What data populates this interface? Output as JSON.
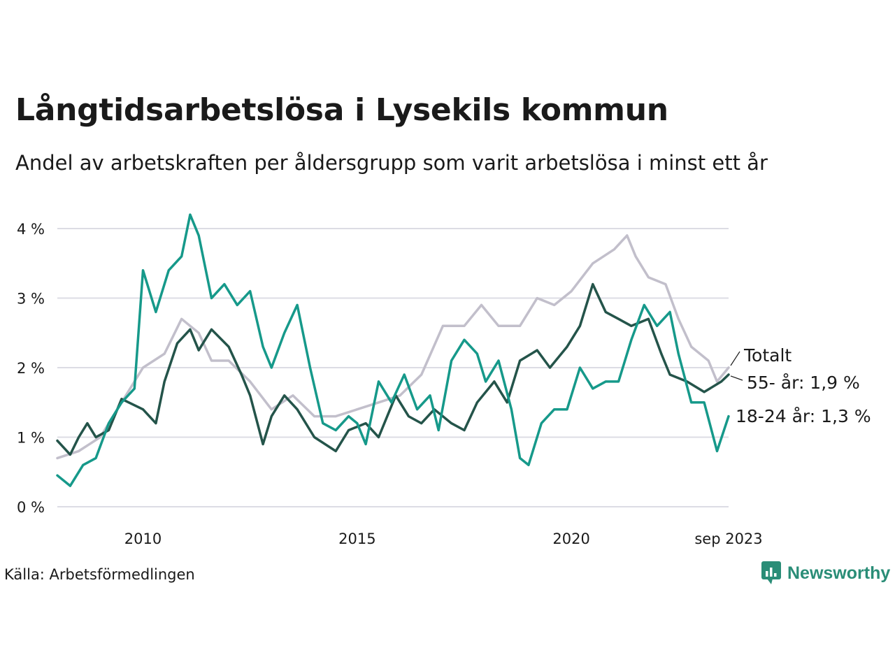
{
  "header": {
    "title": "Långtidsarbetslösa i Lysekils kommun",
    "subtitle": "Andel av arbetskraften per åldersgrupp som varit arbetslösa i minst ett år"
  },
  "footer": {
    "source": "Källa: Arbetsförmedlingen",
    "brand": "Newsworthy"
  },
  "colors": {
    "young": "#16998a",
    "old": "#24544a",
    "total": "#c2bfcb",
    "grid": "#dcdce4",
    "brand": "#2a8d77"
  },
  "chart_data": {
    "type": "line",
    "title": "Långtidsarbetslösa i Lysekils kommun",
    "xlabel": "",
    "ylabel": "",
    "ylim": [
      0,
      4.3
    ],
    "xlim": [
      2008.0,
      2023.67
    ],
    "grid": true,
    "y_ticks": [
      {
        "value": 0,
        "label": "0 %"
      },
      {
        "value": 1,
        "label": "1 %"
      },
      {
        "value": 2,
        "label": "2 %"
      },
      {
        "value": 3,
        "label": "3 %"
      },
      {
        "value": 4,
        "label": "4 %"
      }
    ],
    "x_ticks": [
      {
        "value": 2010,
        "label": "2010"
      },
      {
        "value": 2015,
        "label": "2015"
      },
      {
        "value": 2020,
        "label": "2020"
      },
      {
        "value": 2023.67,
        "label": "sep 2023"
      }
    ],
    "series": [
      {
        "name": "Totalt",
        "label": "Totalt",
        "color": "#c2bfcb",
        "points": [
          [
            2008.0,
            0.7
          ],
          [
            2008.5,
            0.8
          ],
          [
            2009.0,
            1.0
          ],
          [
            2009.5,
            1.5
          ],
          [
            2010.0,
            2.0
          ],
          [
            2010.5,
            2.2
          ],
          [
            2010.9,
            2.7
          ],
          [
            2011.3,
            2.5
          ],
          [
            2011.6,
            2.1
          ],
          [
            2012.0,
            2.1
          ],
          [
            2012.5,
            1.8
          ],
          [
            2013.0,
            1.4
          ],
          [
            2013.5,
            1.6
          ],
          [
            2014.0,
            1.3
          ],
          [
            2014.5,
            1.3
          ],
          [
            2015.0,
            1.4
          ],
          [
            2015.5,
            1.5
          ],
          [
            2016.0,
            1.6
          ],
          [
            2016.5,
            1.9
          ],
          [
            2017.0,
            2.6
          ],
          [
            2017.5,
            2.6
          ],
          [
            2017.9,
            2.9
          ],
          [
            2018.3,
            2.6
          ],
          [
            2018.8,
            2.6
          ],
          [
            2019.2,
            3.0
          ],
          [
            2019.6,
            2.9
          ],
          [
            2020.0,
            3.1
          ],
          [
            2020.5,
            3.5
          ],
          [
            2021.0,
            3.7
          ],
          [
            2021.3,
            3.9
          ],
          [
            2021.5,
            3.6
          ],
          [
            2021.8,
            3.3
          ],
          [
            2022.2,
            3.2
          ],
          [
            2022.5,
            2.7
          ],
          [
            2022.8,
            2.3
          ],
          [
            2023.2,
            2.1
          ],
          [
            2023.4,
            1.8
          ],
          [
            2023.67,
            2.0
          ]
        ]
      },
      {
        "name": "55- år",
        "label": "55- år: 1,9 %",
        "color": "#24544a",
        "points": [
          [
            2008.0,
            0.95
          ],
          [
            2008.3,
            0.75
          ],
          [
            2008.5,
            1.0
          ],
          [
            2008.7,
            1.2
          ],
          [
            2008.9,
            1.0
          ],
          [
            2009.2,
            1.1
          ],
          [
            2009.5,
            1.55
          ],
          [
            2010.0,
            1.4
          ],
          [
            2010.3,
            1.2
          ],
          [
            2010.5,
            1.8
          ],
          [
            2010.8,
            2.35
          ],
          [
            2011.1,
            2.55
          ],
          [
            2011.3,
            2.25
          ],
          [
            2011.6,
            2.55
          ],
          [
            2012.0,
            2.3
          ],
          [
            2012.3,
            1.9
          ],
          [
            2012.5,
            1.6
          ],
          [
            2012.8,
            0.9
          ],
          [
            2013.0,
            1.3
          ],
          [
            2013.3,
            1.6
          ],
          [
            2013.6,
            1.4
          ],
          [
            2014.0,
            1.0
          ],
          [
            2014.5,
            0.8
          ],
          [
            2014.8,
            1.1
          ],
          [
            2015.2,
            1.2
          ],
          [
            2015.5,
            1.0
          ],
          [
            2015.9,
            1.6
          ],
          [
            2016.2,
            1.3
          ],
          [
            2016.5,
            1.2
          ],
          [
            2016.8,
            1.4
          ],
          [
            2017.2,
            1.2
          ],
          [
            2017.5,
            1.1
          ],
          [
            2017.8,
            1.5
          ],
          [
            2018.2,
            1.8
          ],
          [
            2018.5,
            1.5
          ],
          [
            2018.8,
            2.1
          ],
          [
            2019.2,
            2.25
          ],
          [
            2019.5,
            2.0
          ],
          [
            2019.9,
            2.3
          ],
          [
            2020.2,
            2.6
          ],
          [
            2020.5,
            3.2
          ],
          [
            2020.8,
            2.8
          ],
          [
            2021.1,
            2.7
          ],
          [
            2021.4,
            2.6
          ],
          [
            2021.8,
            2.7
          ],
          [
            2022.1,
            2.2
          ],
          [
            2022.3,
            1.9
          ],
          [
            2022.7,
            1.8
          ],
          [
            2023.1,
            1.65
          ],
          [
            2023.5,
            1.8
          ],
          [
            2023.67,
            1.9
          ]
        ]
      },
      {
        "name": "18-24 år",
        "label": "18-24 år: 1,3 %",
        "color": "#16998a",
        "points": [
          [
            2008.0,
            0.45
          ],
          [
            2008.3,
            0.3
          ],
          [
            2008.6,
            0.6
          ],
          [
            2008.9,
            0.7
          ],
          [
            2009.2,
            1.2
          ],
          [
            2009.5,
            1.5
          ],
          [
            2009.8,
            1.7
          ],
          [
            2010.0,
            3.4
          ],
          [
            2010.3,
            2.8
          ],
          [
            2010.6,
            3.4
          ],
          [
            2010.9,
            3.6
          ],
          [
            2011.1,
            4.2
          ],
          [
            2011.3,
            3.9
          ],
          [
            2011.6,
            3.0
          ],
          [
            2011.9,
            3.2
          ],
          [
            2012.2,
            2.9
          ],
          [
            2012.5,
            3.1
          ],
          [
            2012.8,
            2.3
          ],
          [
            2013.0,
            2.0
          ],
          [
            2013.3,
            2.5
          ],
          [
            2013.6,
            2.9
          ],
          [
            2013.9,
            2.0
          ],
          [
            2014.2,
            1.2
          ],
          [
            2014.5,
            1.1
          ],
          [
            2014.8,
            1.3
          ],
          [
            2015.0,
            1.2
          ],
          [
            2015.2,
            0.9
          ],
          [
            2015.5,
            1.8
          ],
          [
            2015.8,
            1.5
          ],
          [
            2016.1,
            1.9
          ],
          [
            2016.4,
            1.4
          ],
          [
            2016.7,
            1.6
          ],
          [
            2016.9,
            1.1
          ],
          [
            2017.2,
            2.1
          ],
          [
            2017.5,
            2.4
          ],
          [
            2017.8,
            2.2
          ],
          [
            2018.0,
            1.8
          ],
          [
            2018.3,
            2.1
          ],
          [
            2018.6,
            1.4
          ],
          [
            2018.8,
            0.7
          ],
          [
            2019.0,
            0.6
          ],
          [
            2019.3,
            1.2
          ],
          [
            2019.6,
            1.4
          ],
          [
            2019.9,
            1.4
          ],
          [
            2020.2,
            2.0
          ],
          [
            2020.5,
            1.7
          ],
          [
            2020.8,
            1.8
          ],
          [
            2021.1,
            1.8
          ],
          [
            2021.4,
            2.4
          ],
          [
            2021.7,
            2.9
          ],
          [
            2022.0,
            2.6
          ],
          [
            2022.3,
            2.8
          ],
          [
            2022.5,
            2.2
          ],
          [
            2022.8,
            1.5
          ],
          [
            2023.1,
            1.5
          ],
          [
            2023.4,
            0.8
          ],
          [
            2023.67,
            1.3
          ]
        ]
      }
    ]
  }
}
